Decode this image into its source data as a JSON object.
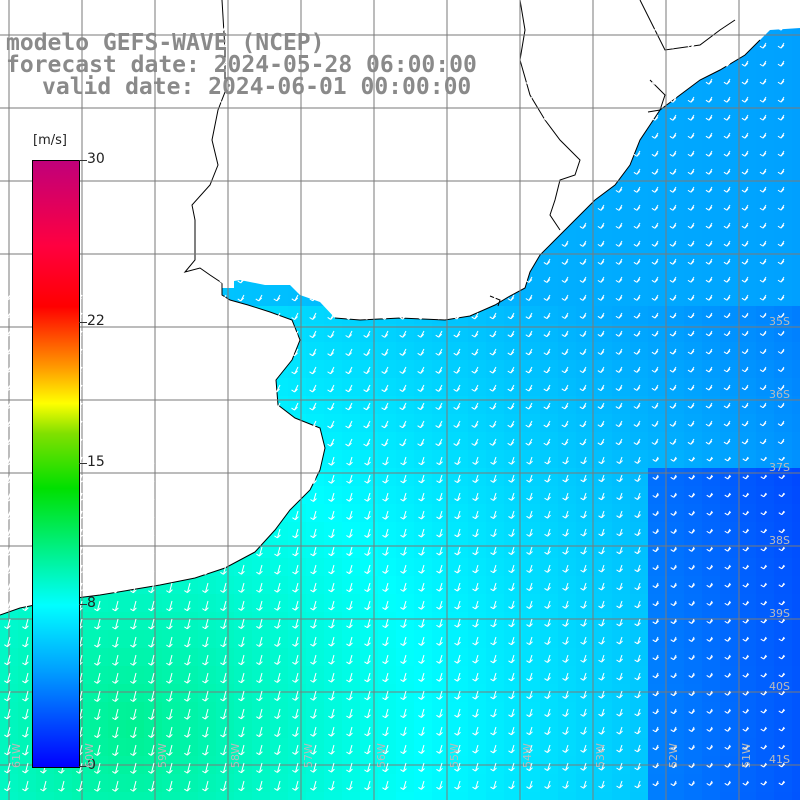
{
  "title": {
    "model": "modelo GEFS-WAVE (NCEP)",
    "forecast": "forecast date: 2024-05-28 06:00:00",
    "valid": "valid date: 2024-06-01 00:00:00"
  },
  "colorbar": {
    "unit": "[m/s]",
    "ticks": [
      {
        "value": 30,
        "label": "30"
      },
      {
        "value": 22,
        "label": "22"
      },
      {
        "value": 15,
        "label": "15"
      },
      {
        "value": 8,
        "label": "8"
      },
      {
        "value": 0,
        "label": "0"
      }
    ],
    "range": [
      0,
      30
    ]
  },
  "map": {
    "lat_labels": [
      {
        "lat": 35,
        "label": "35S"
      },
      {
        "lat": 36,
        "label": "36S"
      },
      {
        "lat": 37,
        "label": "37S"
      },
      {
        "lat": 38,
        "label": "38S"
      },
      {
        "lat": 39,
        "label": "39S"
      },
      {
        "lat": 40,
        "label": "40S"
      },
      {
        "lat": 41,
        "label": "41S"
      }
    ],
    "lon_labels": [
      {
        "lon": 61,
        "label": "61W"
      },
      {
        "lon": 60,
        "label": "60W"
      },
      {
        "lon": 59,
        "label": "59W"
      },
      {
        "lon": 58,
        "label": "58W"
      },
      {
        "lon": 57,
        "label": "57W"
      },
      {
        "lon": 56,
        "label": "56W"
      },
      {
        "lon": 55,
        "label": "55W"
      },
      {
        "lon": 54,
        "label": "54W"
      },
      {
        "lon": 53,
        "label": "53W"
      },
      {
        "lon": 52,
        "label": "52W"
      },
      {
        "lon": 51,
        "label": "51W"
      }
    ],
    "land_color": "#ffffff",
    "coast_color": "#000000",
    "grid_color": "#7a7a7a",
    "arrow_color": "#ffffff"
  }
}
